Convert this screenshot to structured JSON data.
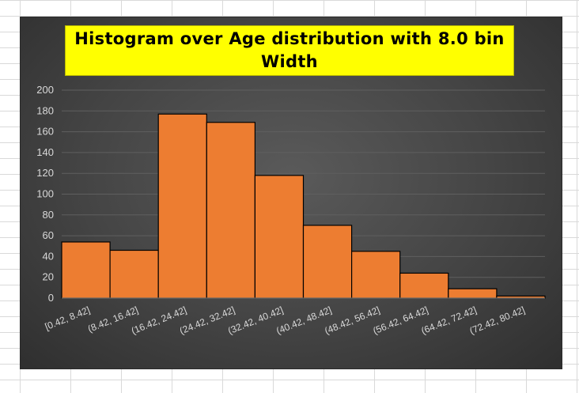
{
  "chart_data": {
    "type": "bar",
    "title": "Histogram over Age distribution with 8.0 bin Width",
    "categories": [
      "[0.42, 8.42]",
      "(8.42, 16.42]",
      "(16.42, 24.42]",
      "(24.42, 32.42]",
      "(32.42, 40.42]",
      "(40.42, 48.42]",
      "(48.42, 56.42]",
      "(56.42, 64.42]",
      "(64.42, 72.42]",
      "(72.42, 80.42]"
    ],
    "values": [
      54,
      46,
      177,
      169,
      118,
      70,
      45,
      24,
      9,
      2
    ],
    "ylim": [
      0,
      200
    ],
    "yticks": [
      "0",
      "20",
      "40",
      "60",
      "80",
      "100",
      "120",
      "140",
      "160",
      "180",
      "200"
    ],
    "xlabel": "",
    "ylabel": "",
    "grid": true,
    "legend": "none",
    "colors": {
      "bar_fill": "#ed7d31",
      "bar_stroke": "#000000",
      "title_background": "#ffff00",
      "plot_background": "#4a4a4a",
      "gridline": "#5f5f5f",
      "tick_text": "#d9d9d9"
    }
  }
}
